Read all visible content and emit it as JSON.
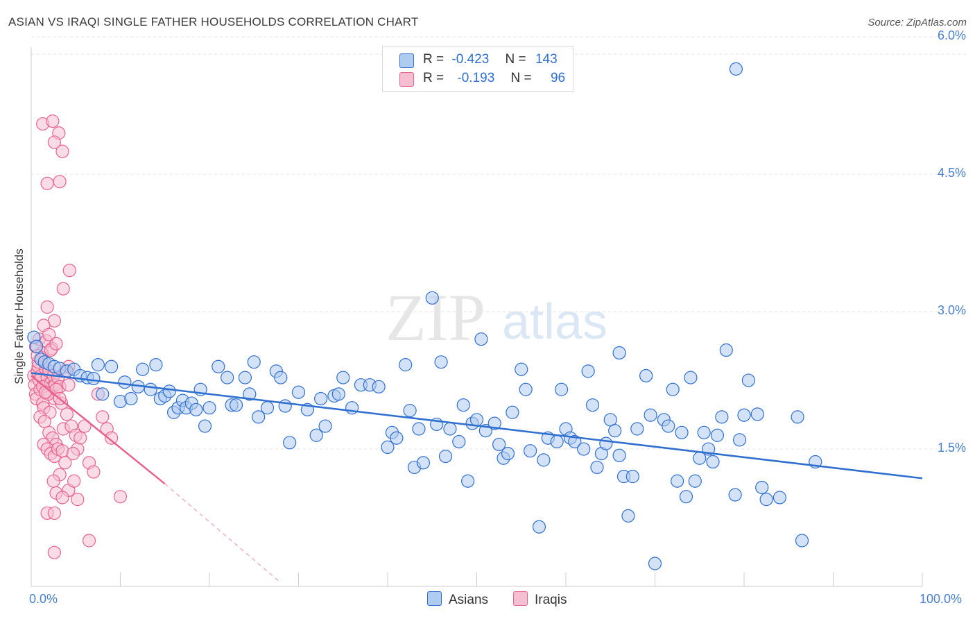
{
  "title": "ASIAN VS IRAQI SINGLE FATHER HOUSEHOLDS CORRELATION CHART",
  "source": "Source: ZipAtlas.com",
  "watermark": {
    "zip": "ZIP",
    "atlas": "atlas"
  },
  "legend": {
    "asians": {
      "r_label": "R =",
      "r_value": "-0.423",
      "n_label": "N =",
      "n_value": "143"
    },
    "iraqis": {
      "r_label": "R =",
      "r_value": "-0.193",
      "n_label": "N =",
      "n_value": "96"
    }
  },
  "bottom_legend": {
    "asians": "Asians",
    "iraqis": "Iraqis"
  },
  "colors": {
    "asians": "#2f6fd0",
    "asians_fill": "#aecbf0",
    "iraqis": "#e8628f",
    "iraqis_fill": "#f6bfd1",
    "tick_text": "#4a80cf"
  },
  "chart_data": {
    "type": "scatter",
    "title": "ASIAN VS IRAQI SINGLE FATHER HOUSEHOLDS CORRELATION CHART",
    "xlabel": "",
    "ylabel": "Single Father Households",
    "xlim": [
      0,
      100
    ],
    "ylim": [
      0,
      6.1
    ],
    "x_tick_labels": [
      "0.0%",
      "100.0%"
    ],
    "y_ticks": [
      1.5,
      3.0,
      4.5,
      6.0
    ],
    "y_tick_labels": [
      "1.5%",
      "3.0%",
      "4.5%",
      "6.0%"
    ],
    "grid": true,
    "legend_position": "top-center",
    "series": [
      {
        "name": "Asians",
        "points": [
          [
            0.3,
            2.72
          ],
          [
            0.6,
            2.62
          ],
          [
            1.1,
            2.48
          ],
          [
            1.5,
            2.45
          ],
          [
            2.0,
            2.43
          ],
          [
            2.6,
            2.4
          ],
          [
            3.2,
            2.38
          ],
          [
            4.0,
            2.35
          ],
          [
            4.8,
            2.37
          ],
          [
            5.5,
            2.3
          ],
          [
            6.3,
            2.28
          ],
          [
            7.0,
            2.27
          ],
          [
            7.5,
            2.42
          ],
          [
            8.0,
            2.1
          ],
          [
            9.0,
            2.4
          ],
          [
            10.0,
            2.02
          ],
          [
            10.5,
            2.23
          ],
          [
            11.2,
            2.05
          ],
          [
            12.0,
            2.18
          ],
          [
            12.5,
            2.37
          ],
          [
            13.4,
            2.15
          ],
          [
            14.0,
            2.42
          ],
          [
            14.5,
            2.05
          ],
          [
            15.0,
            2.08
          ],
          [
            15.5,
            2.13
          ],
          [
            16.0,
            1.9
          ],
          [
            16.5,
            1.95
          ],
          [
            17.0,
            2.03
          ],
          [
            17.4,
            1.95
          ],
          [
            18.0,
            2.0
          ],
          [
            18.5,
            1.93
          ],
          [
            19.0,
            2.15
          ],
          [
            19.5,
            1.75
          ],
          [
            20.0,
            1.95
          ],
          [
            21.0,
            2.4
          ],
          [
            22.0,
            2.28
          ],
          [
            22.5,
            1.98
          ],
          [
            23.0,
            1.98
          ],
          [
            24.0,
            2.28
          ],
          [
            24.5,
            2.1
          ],
          [
            25.0,
            2.45
          ],
          [
            25.5,
            1.85
          ],
          [
            26.5,
            1.95
          ],
          [
            27.5,
            2.35
          ],
          [
            28.0,
            2.28
          ],
          [
            28.5,
            1.97
          ],
          [
            29.0,
            1.57
          ],
          [
            30.0,
            2.12
          ],
          [
            31.0,
            1.93
          ],
          [
            32.0,
            1.65
          ],
          [
            32.5,
            2.05
          ],
          [
            33.0,
            1.75
          ],
          [
            34.0,
            2.08
          ],
          [
            34.5,
            2.1
          ],
          [
            35.0,
            2.28
          ],
          [
            36.0,
            1.95
          ],
          [
            37.0,
            2.2
          ],
          [
            38.0,
            2.2
          ],
          [
            39.0,
            2.18
          ],
          [
            40.0,
            1.52
          ],
          [
            40.5,
            1.68
          ],
          [
            41.0,
            1.62
          ],
          [
            42.0,
            2.42
          ],
          [
            42.5,
            1.92
          ],
          [
            43.0,
            1.3
          ],
          [
            43.5,
            1.72
          ],
          [
            44.0,
            1.35
          ],
          [
            45.0,
            3.15
          ],
          [
            45.5,
            1.77
          ],
          [
            46.0,
            2.45
          ],
          [
            46.5,
            1.42
          ],
          [
            47.0,
            1.72
          ],
          [
            48.0,
            1.58
          ],
          [
            48.5,
            1.98
          ],
          [
            49.0,
            1.15
          ],
          [
            49.5,
            1.78
          ],
          [
            50.0,
            1.82
          ],
          [
            50.5,
            2.7
          ],
          [
            51.0,
            1.7
          ],
          [
            52.0,
            1.78
          ],
          [
            52.5,
            1.55
          ],
          [
            53.0,
            1.4
          ],
          [
            53.5,
            1.45
          ],
          [
            54.0,
            1.9
          ],
          [
            55.0,
            2.37
          ],
          [
            55.5,
            2.15
          ],
          [
            56.0,
            1.48
          ],
          [
            57.0,
            0.65
          ],
          [
            57.5,
            1.38
          ],
          [
            58.0,
            1.62
          ],
          [
            59.0,
            1.58
          ],
          [
            59.5,
            2.15
          ],
          [
            60.0,
            1.72
          ],
          [
            60.5,
            1.62
          ],
          [
            61.0,
            1.58
          ],
          [
            62.0,
            1.5
          ],
          [
            62.5,
            2.35
          ],
          [
            63.0,
            1.98
          ],
          [
            63.5,
            1.3
          ],
          [
            64.0,
            1.45
          ],
          [
            64.5,
            1.56
          ],
          [
            65.0,
            1.82
          ],
          [
            65.5,
            1.7
          ],
          [
            66.0,
            1.43
          ],
          [
            66.5,
            1.2
          ],
          [
            67.0,
            0.77
          ],
          [
            67.5,
            1.2
          ],
          [
            68.0,
            1.72
          ],
          [
            69.0,
            2.3
          ],
          [
            69.5,
            1.87
          ],
          [
            70.0,
            0.25
          ],
          [
            71.0,
            1.82
          ],
          [
            71.5,
            1.75
          ],
          [
            72.0,
            2.15
          ],
          [
            72.5,
            1.15
          ],
          [
            73.0,
            1.68
          ],
          [
            73.5,
            0.98
          ],
          [
            74.0,
            2.28
          ],
          [
            74.5,
            1.15
          ],
          [
            75.0,
            1.4
          ],
          [
            75.5,
            1.68
          ],
          [
            76.0,
            1.5
          ],
          [
            76.5,
            1.36
          ],
          [
            77.0,
            1.65
          ],
          [
            77.5,
            1.85
          ],
          [
            78.0,
            2.58
          ],
          [
            79.0,
            1.0
          ],
          [
            79.5,
            1.6
          ],
          [
            80.0,
            1.87
          ],
          [
            80.5,
            2.25
          ],
          [
            81.5,
            1.88
          ],
          [
            82.0,
            1.08
          ],
          [
            82.5,
            0.95
          ],
          [
            84.0,
            0.97
          ],
          [
            86.0,
            1.85
          ],
          [
            86.5,
            0.5
          ],
          [
            88.0,
            1.36
          ],
          [
            79.1,
            5.65
          ],
          [
            66.0,
            2.55
          ]
        ],
        "trend": {
          "x": [
            0,
            100
          ],
          "y": [
            2.33,
            1.18
          ]
        }
      },
      {
        "name": "Iraqis",
        "points": [
          [
            0.3,
            2.3
          ],
          [
            0.4,
            2.2
          ],
          [
            0.5,
            2.1
          ],
          [
            0.6,
            2.05
          ],
          [
            0.7,
            2.35
          ],
          [
            0.8,
            2.4
          ],
          [
            0.9,
            2.25
          ],
          [
            1.0,
            2.15
          ],
          [
            1.1,
            2.3
          ],
          [
            1.2,
            2.5
          ],
          [
            1.3,
            2.0
          ],
          [
            1.4,
            1.95
          ],
          [
            1.5,
            2.45
          ],
          [
            1.6,
            2.38
          ],
          [
            1.7,
            2.2
          ],
          [
            1.8,
            2.28
          ],
          [
            1.9,
            2.12
          ],
          [
            2.0,
            2.35
          ],
          [
            2.1,
            1.9
          ],
          [
            2.2,
            2.22
          ],
          [
            2.3,
            2.6
          ],
          [
            2.4,
            2.18
          ],
          [
            2.5,
            2.3
          ],
          [
            2.6,
            2.05
          ],
          [
            0.5,
            2.62
          ],
          [
            0.9,
            2.7
          ],
          [
            1.2,
            2.55
          ],
          [
            1.7,
            2.68
          ],
          [
            2.2,
            2.58
          ],
          [
            2.8,
            2.65
          ],
          [
            0.8,
            2.45
          ],
          [
            1.3,
            2.18
          ],
          [
            1.9,
            2.1
          ],
          [
            2.7,
            2.2
          ],
          [
            3.0,
            2.28
          ],
          [
            3.2,
            2.18
          ],
          [
            3.4,
            2.0
          ],
          [
            1.0,
            1.85
          ],
          [
            1.5,
            1.8
          ],
          [
            2.0,
            1.68
          ],
          [
            2.4,
            1.62
          ],
          [
            2.8,
            1.55
          ],
          [
            1.4,
            1.55
          ],
          [
            1.8,
            1.5
          ],
          [
            2.2,
            1.45
          ],
          [
            2.6,
            1.42
          ],
          [
            3.0,
            1.5
          ],
          [
            3.5,
            1.48
          ],
          [
            3.6,
            1.72
          ],
          [
            3.8,
            1.35
          ],
          [
            4.0,
            1.88
          ],
          [
            4.2,
            2.2
          ],
          [
            4.5,
            1.75
          ],
          [
            5.0,
            1.65
          ],
          [
            5.5,
            1.62
          ],
          [
            6.0,
            1.75
          ],
          [
            6.5,
            1.35
          ],
          [
            7.0,
            1.25
          ],
          [
            7.5,
            2.1
          ],
          [
            8.0,
            1.85
          ],
          [
            8.5,
            1.72
          ],
          [
            9.0,
            1.62
          ],
          [
            10.0,
            0.98
          ],
          [
            5.2,
            1.5
          ],
          [
            4.7,
            1.45
          ],
          [
            3.2,
            1.22
          ],
          [
            2.5,
            1.15
          ],
          [
            4.2,
            1.05
          ],
          [
            4.8,
            1.15
          ],
          [
            2.8,
            1.02
          ],
          [
            3.5,
            0.97
          ],
          [
            5.2,
            0.95
          ],
          [
            1.8,
            0.8
          ],
          [
            2.6,
            0.8
          ],
          [
            6.5,
            0.5
          ],
          [
            2.6,
            0.37
          ],
          [
            1.3,
            5.05
          ],
          [
            2.4,
            5.08
          ],
          [
            3.1,
            4.95
          ],
          [
            2.6,
            4.85
          ],
          [
            3.5,
            4.75
          ],
          [
            1.8,
            4.4
          ],
          [
            3.2,
            4.42
          ],
          [
            4.3,
            3.45
          ],
          [
            3.6,
            3.25
          ],
          [
            1.8,
            3.05
          ],
          [
            2.6,
            2.9
          ],
          [
            1.4,
            2.85
          ],
          [
            2.0,
            2.75
          ],
          [
            0.7,
            2.52
          ],
          [
            3.8,
            2.35
          ],
          [
            4.2,
            2.4
          ],
          [
            1.6,
            2.12
          ],
          [
            2.8,
            2.15
          ],
          [
            3.2,
            2.05
          ]
        ],
        "trend": {
          "x": [
            0,
            15
          ],
          "y": [
            2.3,
            1.12
          ]
        },
        "trend_extension": {
          "x": [
            15,
            28
          ],
          "y": [
            1.12,
            0.04
          ]
        }
      }
    ]
  }
}
